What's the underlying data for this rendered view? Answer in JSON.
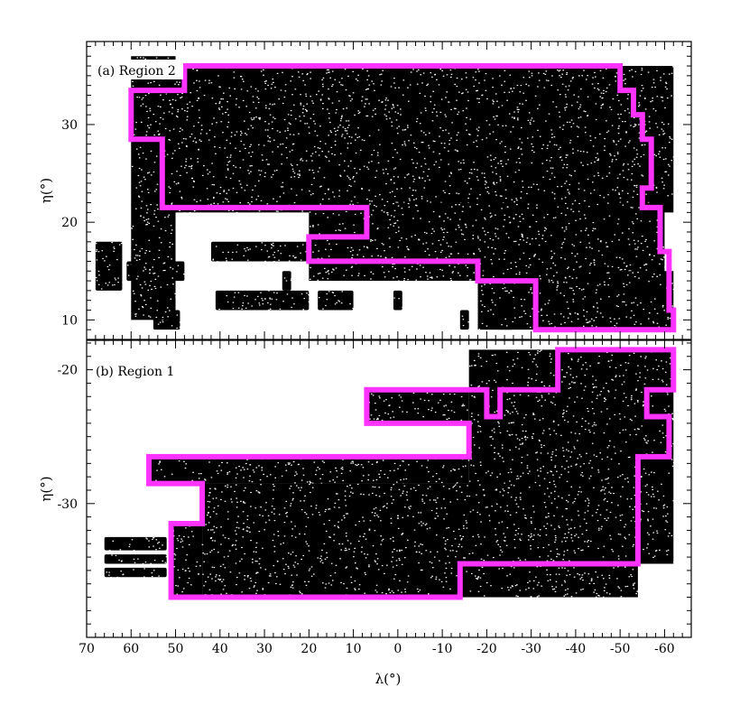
{
  "chart_data": [
    {
      "type": "scatter",
      "panel": "(a) Region 2",
      "xlabel": "λ(°)",
      "ylabel": "η(°)",
      "xlim": [
        70,
        -66
      ],
      "ylim": [
        8,
        38.5
      ],
      "xticks": [
        "70",
        "60",
        "50",
        "40",
        "30",
        "20",
        "10",
        "0",
        "-10",
        "-20",
        "-30",
        "-40",
        "-50",
        "-60"
      ],
      "yticks": [
        10,
        20,
        30
      ],
      "boundary_color": "#ff33ff",
      "boundary": [
        [
          48,
          36
        ],
        [
          -50,
          36
        ],
        [
          -50,
          33.5
        ],
        [
          -53,
          33.5
        ],
        [
          -53,
          31
        ],
        [
          -55,
          31
        ],
        [
          -55,
          28.5
        ],
        [
          -57,
          28.5
        ],
        [
          -57,
          23.5
        ],
        [
          -55,
          23.5
        ],
        [
          -55,
          21.5
        ],
        [
          -59,
          21.5
        ],
        [
          -59,
          17
        ],
        [
          -61,
          17
        ],
        [
          -61,
          11
        ],
        [
          -62,
          11
        ],
        [
          -62,
          9
        ],
        [
          -31,
          9
        ],
        [
          -31,
          14
        ],
        [
          -18,
          14
        ],
        [
          -18,
          16
        ],
        [
          20,
          16
        ],
        [
          20,
          18.5
        ],
        [
          7,
          18.5
        ],
        [
          7,
          21.5
        ],
        [
          53,
          21.5
        ],
        [
          53,
          28.5
        ],
        [
          60,
          28.5
        ],
        [
          60,
          33.5
        ],
        [
          48,
          33.5
        ]
      ],
      "dense_fields": [
        {
          "x": [
            60,
            50
          ],
          "y": [
            10,
            37
          ],
          "density": 1
        },
        {
          "x": [
            52,
            -62
          ],
          "y": [
            21,
            36
          ],
          "density": 1
        },
        {
          "x": [
            20,
            -60
          ],
          "y": [
            14,
            22
          ],
          "density": 1
        },
        {
          "x": [
            -18,
            -62
          ],
          "y": [
            9,
            15
          ],
          "density": 1
        }
      ],
      "outside_patches": [
        {
          "x": [
            68,
            62
          ],
          "y": [
            13,
            18
          ]
        },
        {
          "x": [
            61,
            48
          ],
          "y": [
            14,
            16
          ]
        },
        {
          "x": [
            42,
            20
          ],
          "y": [
            16,
            18
          ]
        },
        {
          "x": [
            41,
            29
          ],
          "y": [
            11,
            13
          ]
        },
        {
          "x": [
            29,
            20
          ],
          "y": [
            11,
            13
          ]
        },
        {
          "x": [
            18,
            10
          ],
          "y": [
            11,
            13
          ]
        },
        {
          "x": [
            1,
            -1
          ],
          "y": [
            11,
            13
          ]
        },
        {
          "x": [
            -14,
            -16
          ],
          "y": [
            9,
            11
          ]
        },
        {
          "x": [
            -22,
            -26
          ],
          "y": [
            9,
            11
          ]
        },
        {
          "x": [
            55,
            49
          ],
          "y": [
            9,
            11
          ]
        },
        {
          "x": [
            26,
            24
          ],
          "y": [
            13,
            15
          ]
        }
      ]
    },
    {
      "type": "scatter",
      "panel": "(b) Region 1",
      "xlabel": "λ(°)",
      "ylabel": "η(°)",
      "xlim": [
        70,
        -66
      ],
      "ylim": [
        -40,
        -17.8
      ],
      "yticks": [
        -30,
        -20
      ],
      "boundary_color": "#ff33ff",
      "boundary": [
        [
          7,
          -21.5
        ],
        [
          -20,
          -21.5
        ],
        [
          -20,
          -23.5
        ],
        [
          -23,
          -23.5
        ],
        [
          -23,
          -21.5
        ],
        [
          -36,
          -21.5
        ],
        [
          -36,
          -18.5
        ],
        [
          -62,
          -18.5
        ],
        [
          -62,
          -21.5
        ],
        [
          -56,
          -21.5
        ],
        [
          -56,
          -23.5
        ],
        [
          -61,
          -23.5
        ],
        [
          -61,
          -26.5
        ],
        [
          -54,
          -26.5
        ],
        [
          -54,
          -34.5
        ],
        [
          -14,
          -34.5
        ],
        [
          -14,
          -37
        ],
        [
          51,
          -37
        ],
        [
          51,
          -31.5
        ],
        [
          44,
          -31.5
        ],
        [
          44,
          -28.5
        ],
        [
          56,
          -28.5
        ],
        [
          56,
          -26.5
        ],
        [
          -16,
          -26.5
        ],
        [
          -16,
          -24
        ],
        [
          7,
          -24
        ]
      ],
      "dense_fields": [
        {
          "x": [
            7,
            -16
          ],
          "y": [
            -24,
            -21.5
          ],
          "density": 1
        },
        {
          "x": [
            -16,
            -62
          ],
          "y": [
            -34.5,
            -18.5
          ],
          "density": 1
        },
        {
          "x": [
            56,
            -16
          ],
          "y": [
            -28.5,
            -26.5
          ],
          "density": 1
        },
        {
          "x": [
            44,
            -54
          ],
          "y": [
            -37,
            -28.5
          ],
          "density": 1
        },
        {
          "x": [
            51,
            44
          ],
          "y": [
            -37,
            -31.5
          ],
          "density": 1
        }
      ],
      "outside_patches": [
        {
          "x": [
            66,
            52
          ],
          "y": [
            -33.5,
            -32.5
          ]
        },
        {
          "x": [
            66,
            52
          ],
          "y": [
            -34.5,
            -33.8
          ]
        },
        {
          "x": [
            66,
            52
          ],
          "y": [
            -35.5,
            -34.8
          ]
        }
      ]
    }
  ]
}
